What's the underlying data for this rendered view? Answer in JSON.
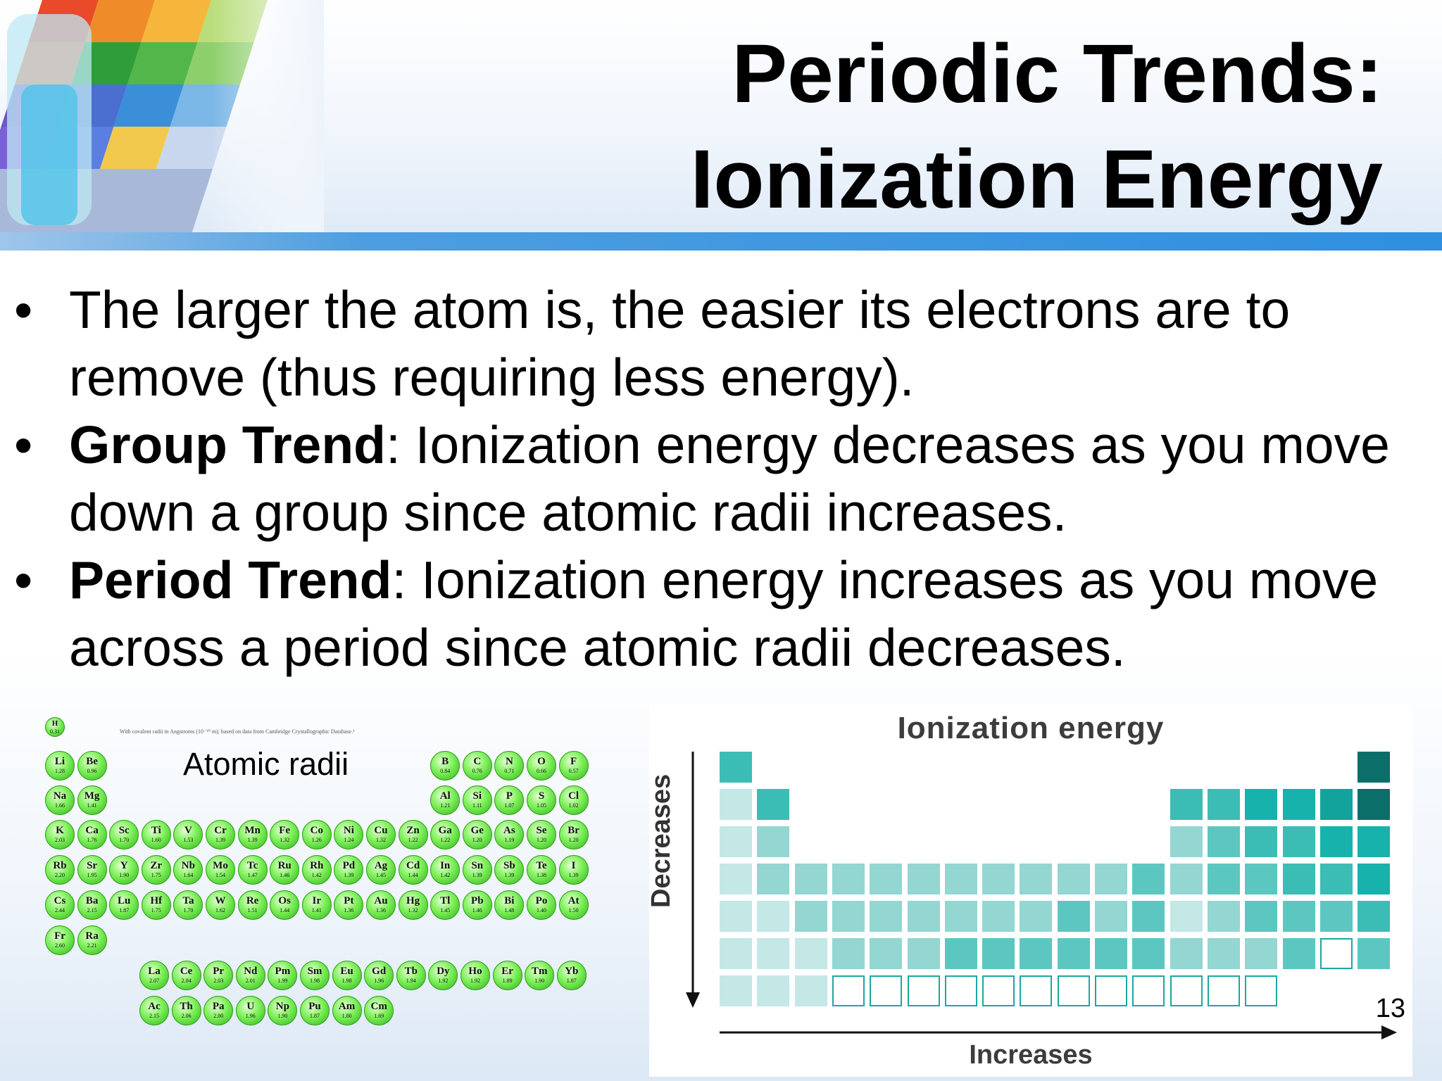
{
  "slide": {
    "title_line1": "Periodic Trends:",
    "title_line2": "Ionization Energy",
    "page_number": "13"
  },
  "bullets": [
    {
      "bold": "",
      "text": "The larger the atom is, the easier its electrons are to remove (thus requiring less energy)."
    },
    {
      "bold": "Group Trend",
      "text": ": Ionization energy decreases as you move down a group since atomic radii increases."
    },
    {
      "bold": "Period Trend",
      "text": ": Ionization energy increases as you move across a period since atomic radii decreases."
    }
  ],
  "atomic_radii_figure": {
    "label": "Atomic radii",
    "note": "With covalent radii in Angstroms (10⁻¹⁰ m); based on data from Cambridge Crystallographic Database.¹",
    "elements": [
      {
        "s": "H",
        "v": "0.31"
      },
      {
        "s": "Li",
        "v": "1.28"
      },
      {
        "s": "Be",
        "v": "0.96"
      },
      {
        "s": "B",
        "v": "0.84"
      },
      {
        "s": "C",
        "v": "0.76"
      },
      {
        "s": "N",
        "v": "0.71"
      },
      {
        "s": "O",
        "v": "0.66"
      },
      {
        "s": "F",
        "v": "0.57"
      },
      {
        "s": "Na",
        "v": "1.66"
      },
      {
        "s": "Mg",
        "v": "1.41"
      },
      {
        "s": "Al",
        "v": "1.21"
      },
      {
        "s": "Si",
        "v": "1.11"
      },
      {
        "s": "P",
        "v": "1.07"
      },
      {
        "s": "S",
        "v": "1.05"
      },
      {
        "s": "Cl",
        "v": "1.02"
      },
      {
        "s": "K",
        "v": "2.03"
      },
      {
        "s": "Ca",
        "v": "1.76"
      },
      {
        "s": "Sc",
        "v": "1.70"
      },
      {
        "s": "Ti",
        "v": "1.60"
      },
      {
        "s": "V",
        "v": "1.53"
      },
      {
        "s": "Cr",
        "v": "1.39"
      },
      {
        "s": "Mn",
        "v": "1.39"
      },
      {
        "s": "Fe",
        "v": "1.32"
      },
      {
        "s": "Co",
        "v": "1.26"
      },
      {
        "s": "Ni",
        "v": "1.24"
      },
      {
        "s": "Cu",
        "v": "1.32"
      },
      {
        "s": "Zn",
        "v": "1.22"
      },
      {
        "s": "Ga",
        "v": "1.22"
      },
      {
        "s": "Ge",
        "v": "1.20"
      },
      {
        "s": "As",
        "v": "1.19"
      },
      {
        "s": "Se",
        "v": "1.20"
      },
      {
        "s": "Br",
        "v": "1.20"
      },
      {
        "s": "Rb",
        "v": "2.20"
      },
      {
        "s": "Sr",
        "v": "1.95"
      },
      {
        "s": "Y",
        "v": "1.90"
      },
      {
        "s": "Zr",
        "v": "1.75"
      },
      {
        "s": "Nb",
        "v": "1.64"
      },
      {
        "s": "Mo",
        "v": "1.54"
      },
      {
        "s": "Tc",
        "v": "1.47"
      },
      {
        "s": "Ru",
        "v": "1.46"
      },
      {
        "s": "Rh",
        "v": "1.42"
      },
      {
        "s": "Pd",
        "v": "1.39"
      },
      {
        "s": "Ag",
        "v": "1.45"
      },
      {
        "s": "Cd",
        "v": "1.44"
      },
      {
        "s": "In",
        "v": "1.42"
      },
      {
        "s": "Sn",
        "v": "1.39"
      },
      {
        "s": "Sb",
        "v": "1.39"
      },
      {
        "s": "Te",
        "v": "1.38"
      },
      {
        "s": "I",
        "v": "1.39"
      },
      {
        "s": "Cs",
        "v": "2.44"
      },
      {
        "s": "Ba",
        "v": "2.15"
      },
      {
        "s": "Lu",
        "v": "1.87"
      },
      {
        "s": "Hf",
        "v": "1.75"
      },
      {
        "s": "Ta",
        "v": "1.70"
      },
      {
        "s": "W",
        "v": "1.62"
      },
      {
        "s": "Re",
        "v": "1.51"
      },
      {
        "s": "Os",
        "v": "1.44"
      },
      {
        "s": "Ir",
        "v": "1.41"
      },
      {
        "s": "Pt",
        "v": "1.36"
      },
      {
        "s": "Au",
        "v": "1.36"
      },
      {
        "s": "Hg",
        "v": "1.32"
      },
      {
        "s": "Tl",
        "v": "1.45"
      },
      {
        "s": "Pb",
        "v": "1.46"
      },
      {
        "s": "Bi",
        "v": "1.48"
      },
      {
        "s": "Po",
        "v": "1.40"
      },
      {
        "s": "At",
        "v": "1.50"
      },
      {
        "s": "Fr",
        "v": "2.60"
      },
      {
        "s": "Ra",
        "v": "2.21"
      },
      {
        "s": "La",
        "v": "2.07"
      },
      {
        "s": "Ce",
        "v": "2.04"
      },
      {
        "s": "Pr",
        "v": "2.03"
      },
      {
        "s": "Nd",
        "v": "2.01"
      },
      {
        "s": "Pm",
        "v": "1.99"
      },
      {
        "s": "Sm",
        "v": "1.98"
      },
      {
        "s": "Eu",
        "v": "1.98"
      },
      {
        "s": "Gd",
        "v": "1.96"
      },
      {
        "s": "Tb",
        "v": "1.94"
      },
      {
        "s": "Dy",
        "v": "1.92"
      },
      {
        "s": "Ho",
        "v": "1.92"
      },
      {
        "s": "Er",
        "v": "1.89"
      },
      {
        "s": "Tm",
        "v": "1.90"
      },
      {
        "s": "Yb",
        "v": "1.87"
      },
      {
        "s": "Ac",
        "v": "2.15"
      },
      {
        "s": "Th",
        "v": "2.06"
      },
      {
        "s": "Pa",
        "v": "2.00"
      },
      {
        "s": "U",
        "v": "1.96"
      },
      {
        "s": "Np",
        "v": "1.90"
      },
      {
        "s": "Pu",
        "v": "1.87"
      },
      {
        "s": "Am",
        "v": "1.80"
      },
      {
        "s": "Cm",
        "v": "1.69"
      }
    ]
  },
  "ionization_figure": {
    "title": "Ionization energy",
    "vertical_label": "Decreases",
    "horizontal_label": "Increases",
    "colors": [
      "#c3e8e6",
      "#93d6d2",
      "#5cc7c1",
      "#3bbdb6",
      "#17b2ab",
      "#12a39c",
      "#0a857f",
      "#0b6e69"
    ]
  }
}
